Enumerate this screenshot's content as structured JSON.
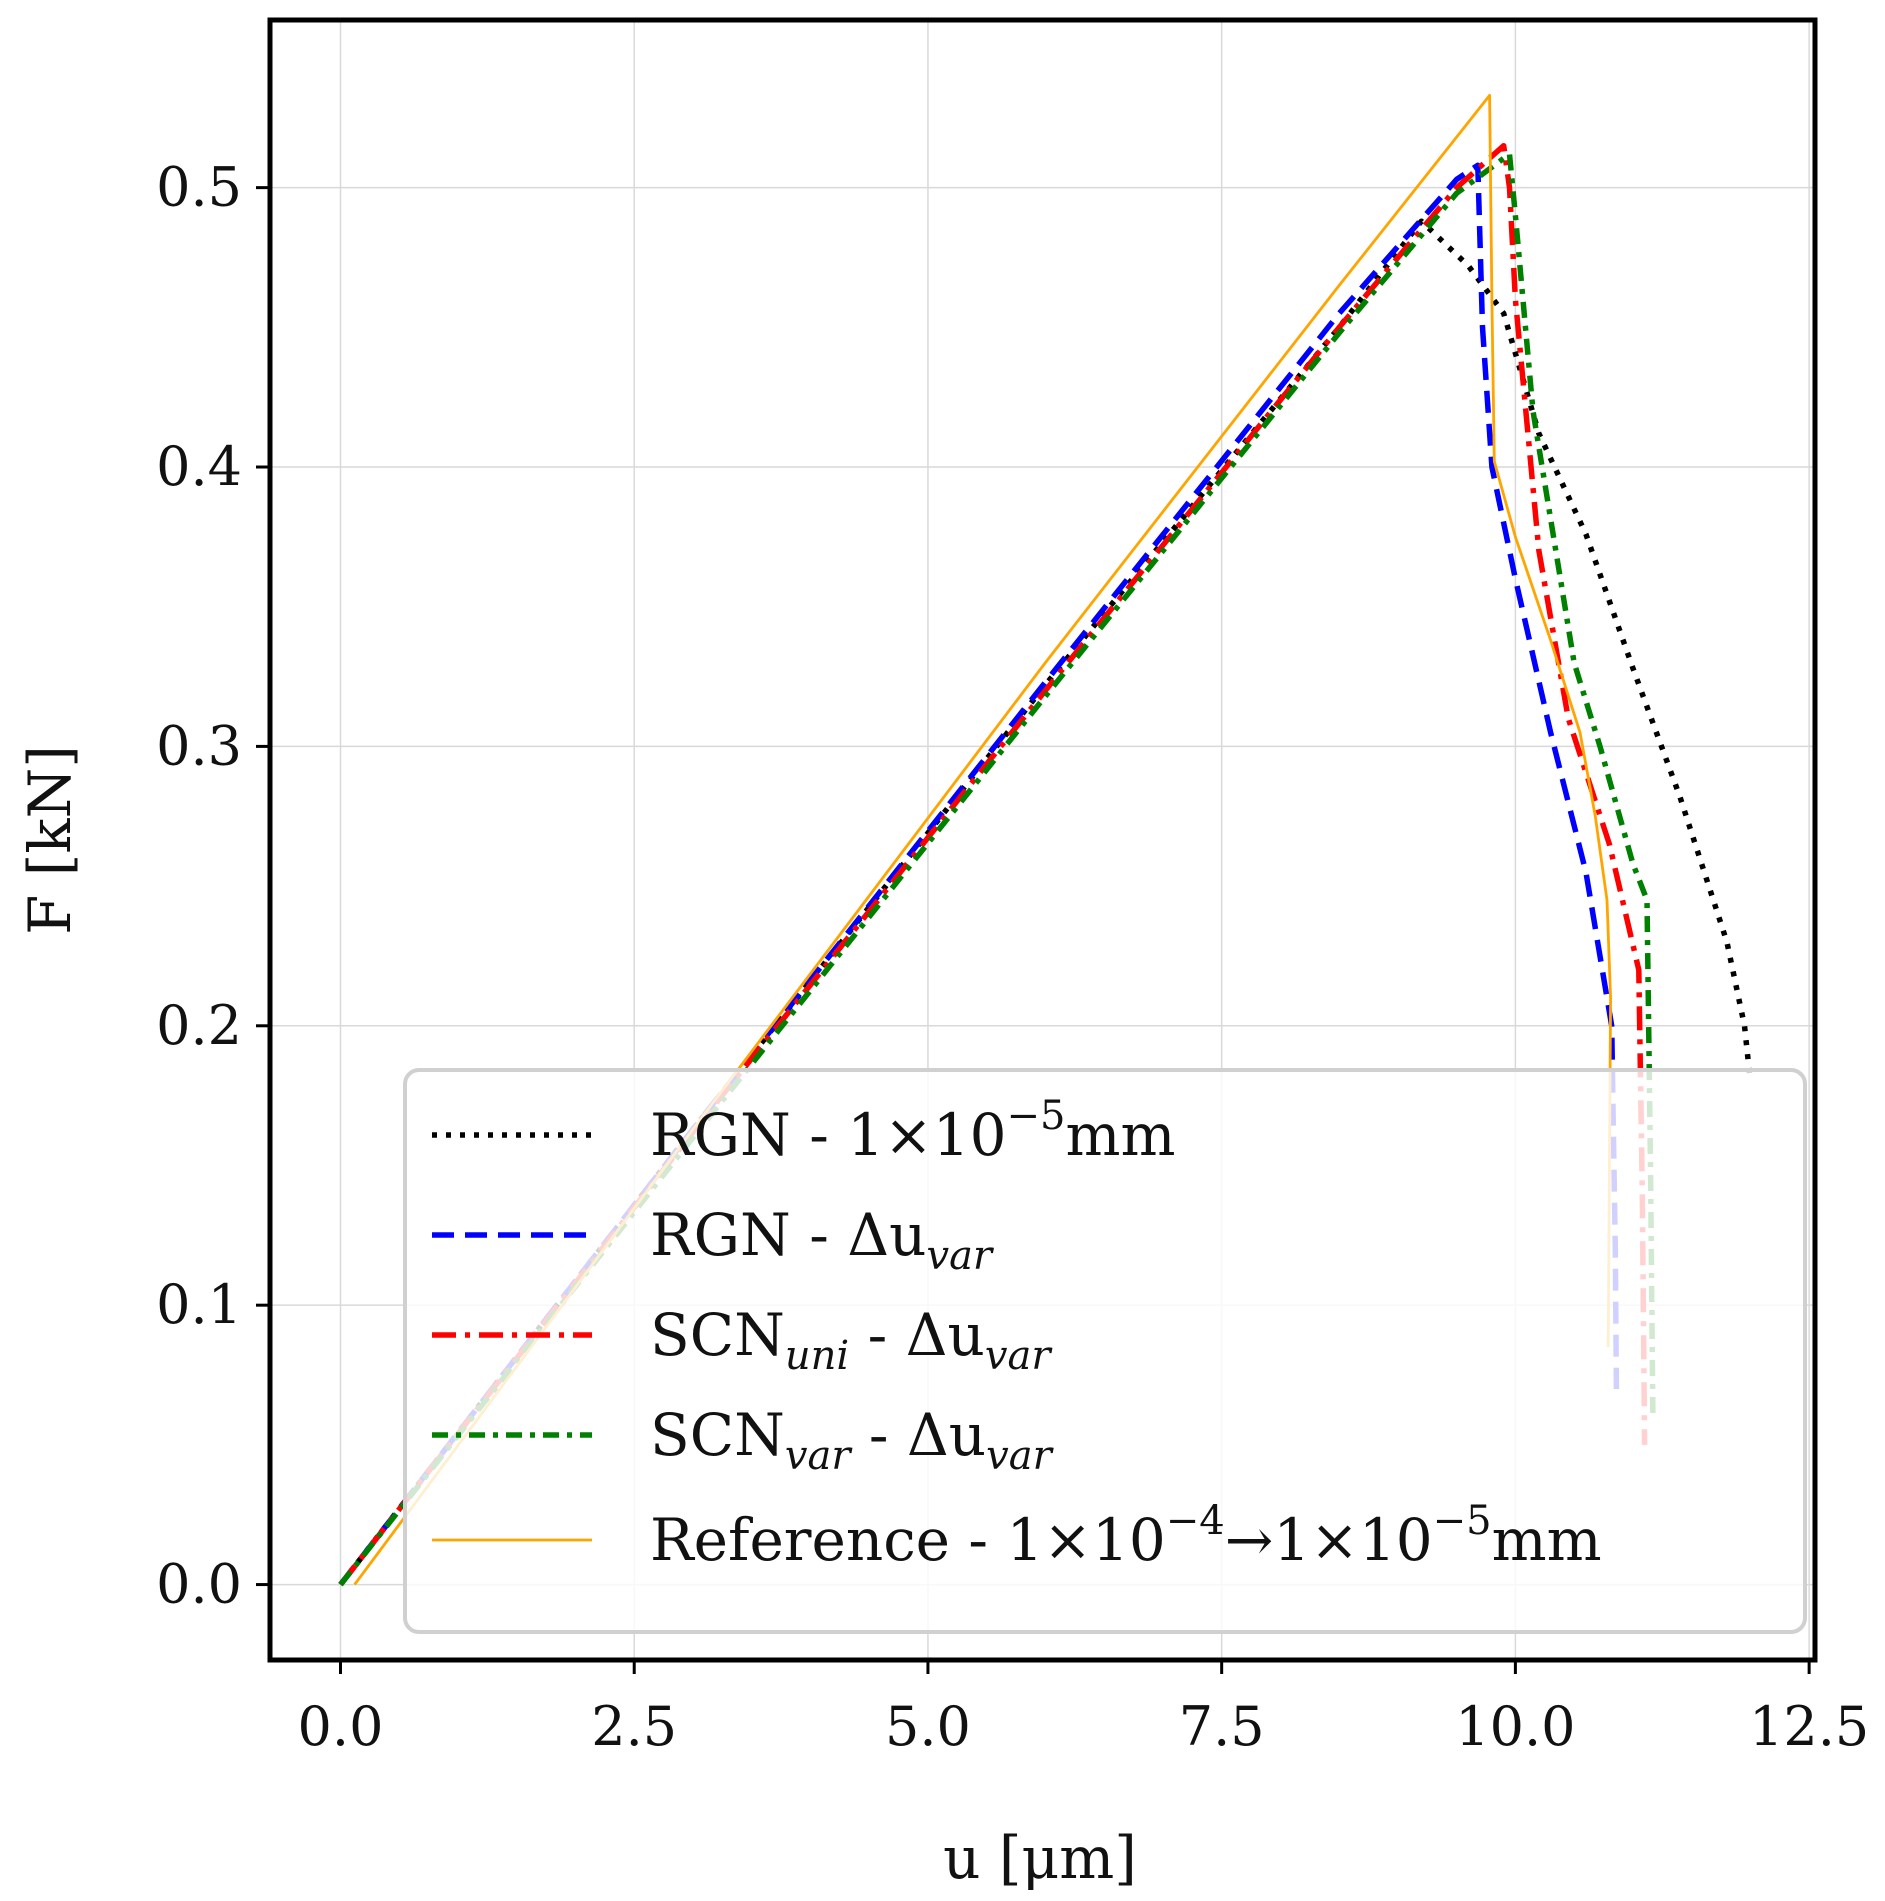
{
  "chart_data": {
    "type": "line",
    "xlabel": "u [μm]",
    "ylabel": "F [kN]",
    "xlim": [
      -0.6,
      12.55
    ],
    "ylim": [
      -0.027,
      0.56
    ],
    "xticks": [
      0.0,
      2.5,
      5.0,
      7.5,
      10.0,
      12.5
    ],
    "xtick_labels": [
      "0.0",
      "2.5",
      "5.0",
      "7.5",
      "10.0",
      "12.5"
    ],
    "yticks": [
      0.0,
      0.1,
      0.2,
      0.3,
      0.4,
      0.5
    ],
    "ytick_labels": [
      "0.0",
      "0.1",
      "0.2",
      "0.3",
      "0.4",
      "0.5"
    ],
    "grid": true,
    "legend_position": "lower-right",
    "series": [
      {
        "name": "RGN - 1×10⁻⁵mm",
        "legend": {
          "base": "RGN - 1×10",
          "sup": "−5",
          "tail": "mm"
        },
        "color": "#000000",
        "style": "dotted",
        "x": [
          0.0,
          3.0,
          6.0,
          8.5,
          9.2,
          9.6,
          9.9,
          10.2,
          10.6,
          11.0,
          11.4,
          11.8,
          11.95,
          12.0
        ],
        "y": [
          0.0,
          0.163,
          0.322,
          0.45,
          0.488,
          0.472,
          0.455,
          0.412,
          0.376,
          0.328,
          0.282,
          0.23,
          0.2,
          0.18
        ]
      },
      {
        "name": "RGN - Δu_var",
        "legend": {
          "base": "RGN - Δu",
          "sub": "var"
        },
        "color": "#0000ff",
        "style": "dashed",
        "x": [
          0.0,
          3.0,
          6.0,
          8.5,
          9.5,
          9.68,
          9.72,
          9.8,
          10.0,
          10.3,
          10.6,
          10.82,
          10.85,
          10.86
        ],
        "y": [
          0.0,
          0.163,
          0.323,
          0.455,
          0.503,
          0.508,
          0.45,
          0.4,
          0.36,
          0.305,
          0.255,
          0.2,
          0.12,
          0.07
        ]
      },
      {
        "name": "SCN_uni - Δu_var",
        "legend": {
          "base": "SCN",
          "sub": "uni",
          "tail": " - Δu",
          "sub2": "var"
        },
        "color": "#ff0000",
        "style": "dashdot",
        "x": [
          0.0,
          3.0,
          6.0,
          8.5,
          9.5,
          9.9,
          9.95,
          10.0,
          10.2,
          10.45,
          10.8,
          11.05,
          11.08,
          11.1
        ],
        "y": [
          0.0,
          0.162,
          0.32,
          0.45,
          0.5,
          0.515,
          0.5,
          0.46,
          0.37,
          0.31,
          0.265,
          0.22,
          0.14,
          0.05
        ]
      },
      {
        "name": "SCN_var - Δu_var",
        "legend": {
          "base": "SCN",
          "sub": "var",
          "tail": " - Δu",
          "sub2": "var"
        },
        "color": "#008000",
        "style": "dashdot-dense",
        "x": [
          0.0,
          3.0,
          6.0,
          8.5,
          9.5,
          9.95,
          10.0,
          10.15,
          10.5,
          10.72,
          11.0,
          11.12,
          11.15,
          11.17
        ],
        "y": [
          0.0,
          0.16,
          0.318,
          0.448,
          0.498,
          0.512,
          0.49,
          0.42,
          0.33,
          0.3,
          0.258,
          0.245,
          0.15,
          0.06
        ]
      },
      {
        "name": "Reference - 1×10⁻⁴→1×10⁻⁵mm",
        "legend": {
          "base": "Reference - 1×10",
          "sup": "−4",
          "mid": "→1×10",
          "sup2": "−5",
          "tail": "mm"
        },
        "color": "#ffa500",
        "style": "solid",
        "x": [
          0.12,
          3.0,
          6.0,
          8.5,
          9.78,
          9.8,
          9.82,
          10.0,
          10.3,
          10.55,
          10.68,
          10.78,
          10.81,
          10.8,
          10.79
        ],
        "y": [
          0.0,
          0.163,
          0.33,
          0.465,
          0.533,
          0.46,
          0.402,
          0.375,
          0.338,
          0.305,
          0.275,
          0.245,
          0.21,
          0.15,
          0.085
        ]
      }
    ]
  }
}
